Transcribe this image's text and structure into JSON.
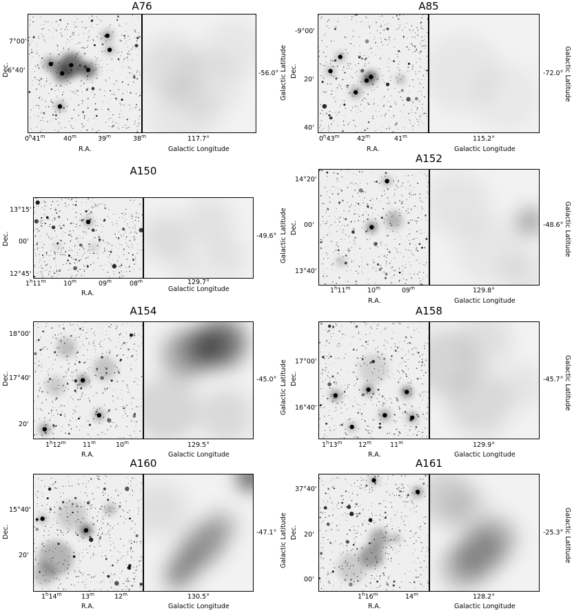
{
  "figure": {
    "panels": [
      {
        "title": "A76",
        "ra_label": "R.A.",
        "dec_label": "Dec.",
        "ra_ticks": [
          "0h41m",
          "40m",
          "39m",
          "38m"
        ],
        "dec_ticks": [
          "7°00'",
          "6°40'"
        ],
        "glon_label": "Galactic Longitude",
        "glon_value": "117.7°",
        "glat_label": "",
        "glat_value": "-56.0°",
        "dust_blobs": [
          [
            0.25,
            0.45,
            0.28,
            0.08
          ],
          [
            0.55,
            0.6,
            0.3,
            0.06
          ],
          [
            0.8,
            0.3,
            0.25,
            0.05
          ],
          [
            0.35,
            0.85,
            0.3,
            0.05
          ]
        ],
        "opt_blobs": [
          [
            0.38,
            0.43,
            0.12,
            0.55
          ],
          [
            0.3,
            0.5,
            0.09,
            0.45
          ],
          [
            0.53,
            0.47,
            0.08,
            0.5
          ],
          [
            0.2,
            0.42,
            0.07,
            0.4
          ],
          [
            0.28,
            0.78,
            0.04,
            0.5
          ],
          [
            0.7,
            0.18,
            0.05,
            0.4
          ],
          [
            0.72,
            0.3,
            0.04,
            0.4
          ]
        ]
      },
      {
        "title": "A85",
        "ra_label": "R.A.",
        "dec_label": "Dec.",
        "ra_ticks": [
          "0h43m",
          "42m",
          "41m"
        ],
        "dec_ticks": [
          "-9°00'",
          "20'",
          "40'"
        ],
        "glon_label": "Galactic Longitude",
        "glon_value": "115.2°",
        "glat_label": "Galactic Latitude",
        "glat_value": "-72.0°",
        "dust_blobs": [
          [
            0.3,
            0.5,
            0.35,
            0.05
          ],
          [
            0.7,
            0.7,
            0.3,
            0.04
          ]
        ],
        "opt_blobs": [
          [
            0.48,
            0.53,
            0.06,
            0.6
          ],
          [
            0.44,
            0.56,
            0.05,
            0.5
          ],
          [
            0.34,
            0.66,
            0.05,
            0.45
          ],
          [
            0.2,
            0.36,
            0.04,
            0.4
          ],
          [
            0.11,
            0.48,
            0.04,
            0.4
          ],
          [
            0.75,
            0.55,
            0.04,
            0.35
          ]
        ]
      },
      {
        "title": "A150",
        "ra_label": "R.A.",
        "dec_label": "Dec.",
        "ra_ticks": [
          "1h11m",
          "10m",
          "09m",
          "08m"
        ],
        "dec_ticks": [
          "13°15'",
          "00'",
          "12°45'"
        ],
        "glon_label": "Galactic Longitude",
        "glon_value": "129.7°",
        "glat_label": "",
        "glat_value": "-49.6°",
        "dust_blobs": [
          [
            0.2,
            0.5,
            0.3,
            0.09
          ],
          [
            0.6,
            0.3,
            0.3,
            0.07
          ],
          [
            0.75,
            0.75,
            0.25,
            0.07
          ],
          [
            0.4,
            0.85,
            0.2,
            0.06
          ]
        ],
        "opt_blobs": [
          [
            0.5,
            0.3,
            0.05,
            0.55
          ],
          [
            0.55,
            0.62,
            0.04,
            0.35
          ],
          [
            0.22,
            0.6,
            0.04,
            0.3
          ]
        ]
      },
      {
        "title": "A152",
        "ra_label": "R.A.",
        "dec_label": "Dec.",
        "ra_ticks": [
          "1h11m",
          "10m",
          "09m"
        ],
        "dec_ticks": [
          "14°20'",
          "00'",
          "13°40'"
        ],
        "glon_label": "Galactic Longitude",
        "glon_value": "129.8°",
        "glat_label": "Galactic Latitude",
        "glat_value": "-48.6°",
        "dust_blobs": [
          [
            0.92,
            0.45,
            0.12,
            0.35
          ],
          [
            0.25,
            0.3,
            0.3,
            0.06
          ],
          [
            0.55,
            0.7,
            0.3,
            0.05
          ],
          [
            0.85,
            0.9,
            0.2,
            0.07
          ]
        ],
        "opt_blobs": [
          [
            0.48,
            0.5,
            0.05,
            0.55
          ],
          [
            0.68,
            0.44,
            0.09,
            0.25
          ],
          [
            0.62,
            0.1,
            0.04,
            0.4
          ],
          [
            0.2,
            0.8,
            0.04,
            0.3
          ]
        ]
      },
      {
        "title": "A154",
        "ra_label": "R.A.",
        "dec_label": "Dec.",
        "ra_ticks": [
          "1h12m",
          "11m",
          "10m"
        ],
        "dec_ticks": [
          "18°00'",
          "17°40'",
          "20'"
        ],
        "glon_label": "Galactic Longitude",
        "glon_value": "129.5°",
        "glat_label": "",
        "glat_value": "-45.0°",
        "dust_blobs": [
          [
            0.72,
            0.18,
            0.22,
            0.5
          ],
          [
            0.38,
            0.28,
            0.22,
            0.3
          ],
          [
            0.55,
            0.22,
            0.2,
            0.35
          ],
          [
            0.2,
            0.75,
            0.3,
            0.12
          ],
          [
            0.75,
            0.8,
            0.25,
            0.1
          ]
        ],
        "opt_blobs": [
          [
            0.45,
            0.5,
            0.05,
            0.55
          ],
          [
            0.1,
            0.92,
            0.05,
            0.5
          ],
          [
            0.6,
            0.8,
            0.05,
            0.4
          ],
          [
            0.3,
            0.22,
            0.1,
            0.2
          ],
          [
            0.65,
            0.4,
            0.12,
            0.18
          ],
          [
            0.2,
            0.55,
            0.1,
            0.15
          ]
        ]
      },
      {
        "title": "A158",
        "ra_label": "R.A.",
        "dec_label": "Dec.",
        "ra_ticks": [
          "1h13m",
          "12m",
          "11m"
        ],
        "dec_ticks": [
          "17°00'",
          "16°40'"
        ],
        "glon_label": "Galactic Longitude",
        "glon_value": "129.9°",
        "glat_label": "Galactic Latitude",
        "glat_value": "-45.7°",
        "dust_blobs": [
          [
            0.15,
            0.35,
            0.3,
            0.12
          ],
          [
            0.5,
            0.15,
            0.25,
            0.08
          ],
          [
            0.45,
            0.7,
            0.3,
            0.1
          ],
          [
            0.85,
            0.55,
            0.2,
            0.06
          ]
        ],
        "opt_blobs": [
          [
            0.8,
            0.6,
            0.05,
            0.6
          ],
          [
            0.45,
            0.58,
            0.05,
            0.5
          ],
          [
            0.15,
            0.63,
            0.05,
            0.5
          ],
          [
            0.6,
            0.8,
            0.05,
            0.45
          ],
          [
            0.85,
            0.82,
            0.05,
            0.4
          ],
          [
            0.3,
            0.9,
            0.04,
            0.4
          ],
          [
            0.5,
            0.4,
            0.15,
            0.12
          ]
        ]
      },
      {
        "title": "A160",
        "ra_label": "R.A.",
        "dec_label": "Dec.",
        "ra_ticks": [
          "1h14m",
          "13m",
          "12m"
        ],
        "dec_ticks": [
          "15°40'",
          "20'"
        ],
        "glon_label": "Galactic Longitude",
        "glon_value": "130.5°",
        "glat_label": "",
        "glat_value": "-47.1°",
        "dust_blobs": [
          [
            0.98,
            0.02,
            0.12,
            0.7
          ],
          [
            0.55,
            0.6,
            0.18,
            0.35
          ],
          [
            0.4,
            0.75,
            0.15,
            0.35
          ],
          [
            0.3,
            0.88,
            0.12,
            0.35
          ],
          [
            0.7,
            0.45,
            0.15,
            0.25
          ],
          [
            0.15,
            0.3,
            0.25,
            0.08
          ]
        ],
        "opt_blobs": [
          [
            0.48,
            0.48,
            0.06,
            0.6
          ],
          [
            0.2,
            0.72,
            0.18,
            0.25
          ],
          [
            0.1,
            0.85,
            0.12,
            0.22
          ],
          [
            0.35,
            0.35,
            0.15,
            0.15
          ],
          [
            0.7,
            0.3,
            0.05,
            0.35
          ],
          [
            0.08,
            0.38,
            0.04,
            0.4
          ]
        ]
      },
      {
        "title": "A161",
        "ra_label": "R.A.",
        "dec_label": "Dec.",
        "ra_ticks": [
          "1h16m",
          "14m"
        ],
        "dec_ticks": [
          "37°40'",
          "20'",
          "00'"
        ],
        "glon_label": "Galactic Longitude",
        "glon_value": "128.2°",
        "glat_label": "Galactic Latitude",
        "glat_value": "-25.3°",
        "dust_blobs": [
          [
            0.45,
            0.68,
            0.22,
            0.3
          ],
          [
            0.6,
            0.55,
            0.2,
            0.25
          ],
          [
            0.3,
            0.8,
            0.2,
            0.25
          ],
          [
            0.15,
            0.2,
            0.25,
            0.15
          ],
          [
            0.35,
            0.3,
            0.2,
            0.1
          ]
        ],
        "opt_blobs": [
          [
            0.48,
            0.7,
            0.12,
            0.35
          ],
          [
            0.55,
            0.55,
            0.1,
            0.3
          ],
          [
            0.9,
            0.15,
            0.05,
            0.45
          ],
          [
            0.3,
            0.8,
            0.15,
            0.15
          ],
          [
            0.5,
            0.05,
            0.04,
            0.4
          ],
          [
            0.7,
            0.55,
            0.04,
            0.35
          ]
        ]
      }
    ]
  }
}
